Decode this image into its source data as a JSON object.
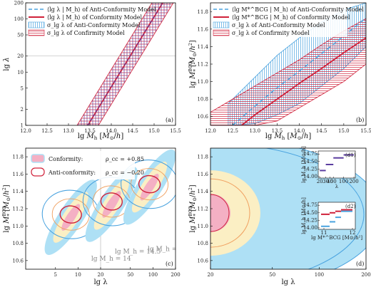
{
  "chart_data": [
    {
      "panel": "(a)",
      "type": "line",
      "xlabel": "lg M_h [M⊙/h]",
      "ylabel": "lg λ",
      "xlim": [
        12.0,
        15.5
      ],
      "ylim": [
        1,
        200
      ],
      "yscale": "log",
      "xticks": [
        "12.0",
        "12.5",
        "13.0",
        "13.5",
        "14.0",
        "14.5",
        "15.0",
        "15.5"
      ],
      "yticks": [
        "1",
        "2",
        "5",
        "10",
        "20",
        "50",
        "100",
        "200"
      ],
      "hline": 20,
      "legend": [
        {
          "label": "⟨lg λ | M_h⟩ of Anti-Conformity Model",
          "style": "dashed",
          "color": "#4aa3df"
        },
        {
          "label": "⟨lg λ | M_h⟩ of Conformity Model",
          "style": "solid",
          "color": "#d0213a"
        },
        {
          "label": "σ_lg λ of Anti-Conformity Model",
          "style": "vhatch",
          "color": "#4aa3df"
        },
        {
          "label": "σ_lg λ of Confirmity Model",
          "style": "hhatch",
          "color": "#d0213a"
        }
      ],
      "series": [
        {
          "name": "⟨lg λ | M_h⟩ of Conformity Model",
          "x": [
            13.45,
            15.2
          ],
          "y": [
            1,
            200
          ]
        },
        {
          "name": "⟨lg λ | M_h⟩ of Anti-Conformity Model",
          "x": [
            13.45,
            15.2
          ],
          "y": [
            1,
            200
          ]
        }
      ],
      "band": {
        "upper_x": [
          13.2,
          14.95
        ],
        "lower_x": [
          13.7,
          15.45
        ],
        "y": [
          1,
          200
        ]
      }
    },
    {
      "panel": "(b)",
      "type": "line",
      "xlabel": "lg M_h [M⊙/h]",
      "ylabel": "lg M*^BCG [M⊙/h²]",
      "xlim": [
        12.0,
        15.5
      ],
      "ylim": [
        10.5,
        11.9
      ],
      "xticks": [
        "12.0",
        "12.5",
        "13.0",
        "13.5",
        "14.0",
        "14.5",
        "15.0",
        "15.5"
      ],
      "yticks": [
        "10.6",
        "10.8",
        "11.0",
        "11.2",
        "11.4",
        "11.6",
        "11.8"
      ],
      "legend": [
        {
          "label": "⟨lg M*^BCG | M_h⟩ of Anti-Conformity Model",
          "style": "dashed",
          "color": "#4aa3df"
        },
        {
          "label": "⟨lg M*^BCG | M_h⟩ of Conformity Model",
          "style": "solid",
          "color": "#d0213a"
        },
        {
          "label": "σ_lg λ of Anti-Conformity Model",
          "style": "vhatch",
          "color": "#4aa3df"
        },
        {
          "label": "σ_lg λ of Confirmity Model",
          "style": "hhatch",
          "color": "#d0213a"
        }
      ],
      "series": [
        {
          "name": "⟨lg M*^BCG | M_h⟩ of Anti-Conformity Model",
          "x": [
            12.5,
            13.0,
            13.5,
            14.0,
            14.5,
            15.0,
            15.5
          ],
          "y": [
            10.5,
            10.72,
            10.93,
            11.12,
            11.32,
            11.52,
            11.73
          ]
        },
        {
          "name": "⟨lg M*^BCG | M_h⟩ of Conformity Model",
          "x": [
            12.7,
            13.0,
            13.5,
            14.0,
            14.5,
            15.0,
            15.5
          ],
          "y": [
            10.5,
            10.62,
            10.8,
            10.98,
            11.15,
            11.33,
            11.5
          ]
        }
      ],
      "anti_band": {
        "x": [
          12.4,
          13.0,
          13.5,
          14.0,
          14.5,
          15.0,
          15.5
        ],
        "upper": [
          10.75,
          11.05,
          11.3,
          11.5,
          11.68,
          11.82,
          11.9
        ],
        "lower": [
          10.5,
          10.52,
          10.62,
          10.75,
          10.95,
          11.15,
          11.4
        ]
      },
      "conf_band": {
        "x": [
          12.0,
          12.5,
          13.0,
          13.5,
          14.0,
          14.5,
          15.0,
          15.5
        ],
        "upper": [
          10.65,
          10.8,
          10.95,
          11.1,
          11.25,
          11.42,
          11.58,
          11.72
        ],
        "lower": [
          10.5,
          10.5,
          10.5,
          10.55,
          10.7,
          10.85,
          11.0,
          11.2
        ]
      }
    },
    {
      "panel": "(c)",
      "type": "scatter",
      "xlabel": "lg λ",
      "ylabel": "lg M*^BCG [M⊙/h²]",
      "xlim": [
        2,
        200
      ],
      "xscale": "log",
      "ylim": [
        10.5,
        11.9
      ],
      "xticks": [
        "5",
        "10",
        "20",
        "50",
        "100",
        "200"
      ],
      "yticks": [
        "10.6",
        "10.8",
        "11.0",
        "11.2",
        "11.4",
        "11.6",
        "11.8"
      ],
      "vline": 20,
      "legend": [
        {
          "label": "Conformity:",
          "rho": "ρ_cc = +0.85"
        },
        {
          "label": "Anti-conformity:",
          "rho": "ρ_cc = −0.20"
        }
      ],
      "mass_labels": [
        "lg M_h = 14",
        "lg M_h = 14.5",
        "lg M_h = 15"
      ],
      "groups": [
        {
          "lambda": 8,
          "mstar": 11.1,
          "conf_angle": 57,
          "anti_angle": -5
        },
        {
          "lambda": 28,
          "mstar": 11.25,
          "conf_angle": 57,
          "anti_angle": -5
        },
        {
          "lambda": 90,
          "mstar": 11.45,
          "conf_angle": 57,
          "anti_angle": -5
        }
      ]
    },
    {
      "panel": "(d)",
      "type": "area",
      "xlabel": "lg λ",
      "ylabel": "lg M*^BCG [M⊙/h²]",
      "xlim": [
        20,
        200
      ],
      "xscale": "log",
      "ylim": [
        10.5,
        11.9
      ],
      "xticks": [
        "20",
        "50",
        "100",
        "200"
      ],
      "yticks": [
        "10.6",
        "10.8",
        "11.0",
        "11.2",
        "11.4",
        "11.6",
        "11.8"
      ],
      "insets": [
        {
          "label": "(d1)",
          "xlabel": "λ",
          "ylabel": "lg M_h [M⊙/h]",
          "xticks": [
            "20",
            "30",
            "40",
            "50",
            "100",
            "200"
          ],
          "yticks": [
            "14.00",
            "14.25",
            "14.50",
            "14.75"
          ],
          "steps": [
            {
              "x0": 20,
              "x1": 30,
              "y": 14.2
            },
            {
              "x0": 30,
              "x1": 50,
              "y": 14.4
            },
            {
              "x0": 50,
              "x1": 100,
              "y": 14.62
            },
            {
              "x0": 100,
              "x1": 200,
              "y": 14.72
            }
          ]
        },
        {
          "label": "(d2)",
          "xlabel": "lg M*^BCG [M⊙/h²]",
          "ylabel": "lg M_h [M⊙/h]",
          "xticks": [
            "11",
            "12"
          ],
          "yticks": [
            "14.00",
            "14.25",
            "14.50",
            "14.75"
          ],
          "steps": [
            {
              "x0": 10.9,
              "x1": 11.2,
              "y": 14.05,
              "color": "#4aa3df"
            },
            {
              "x0": 11.2,
              "x1": 11.4,
              "y": 14.2,
              "color": "#4aa3df"
            },
            {
              "x0": 11.4,
              "x1": 11.6,
              "y": 14.35,
              "color": "#4aa3df"
            },
            {
              "x0": 11.6,
              "x1": 12.0,
              "y": 14.55,
              "color": "#4aa3df"
            },
            {
              "x0": 10.9,
              "x1": 11.2,
              "y": 14.45,
              "color": "#d0213a"
            },
            {
              "x0": 11.2,
              "x1": 11.4,
              "y": 14.5,
              "color": "#d0213a"
            },
            {
              "x0": 11.4,
              "x1": 11.6,
              "y": 14.55,
              "color": "#d0213a"
            },
            {
              "x0": 11.6,
              "x1": 12.0,
              "y": 14.6,
              "color": "#d0213a"
            }
          ]
        }
      ]
    }
  ],
  "colors": {
    "conformity": "#d0213a",
    "anti": "#4aa3df",
    "fill_blue": "#aee0f5",
    "fill_yellow": "#fbefc4",
    "fill_pink": "#f4b0c4",
    "orange": "#f0a060",
    "ref_line": "#aaaaaa"
  }
}
